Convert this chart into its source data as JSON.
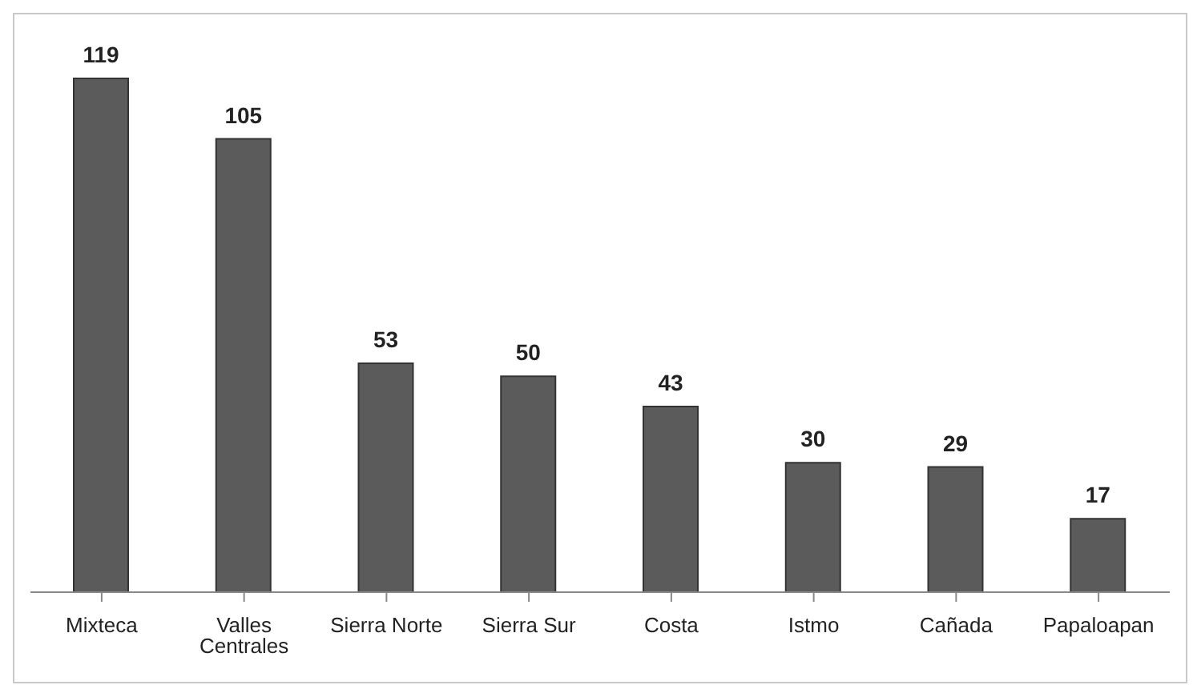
{
  "chart_data": {
    "type": "bar",
    "categories": [
      "Mixteca",
      "Valles Centrales",
      "Sierra Norte",
      "Sierra Sur",
      "Costa",
      "Istmo",
      "Cañada",
      "Papaloapan"
    ],
    "values": [
      119,
      105,
      53,
      50,
      43,
      30,
      29,
      17
    ],
    "color": "#5b5b5b",
    "data_labels": true,
    "tick_labels": "x"
  }
}
